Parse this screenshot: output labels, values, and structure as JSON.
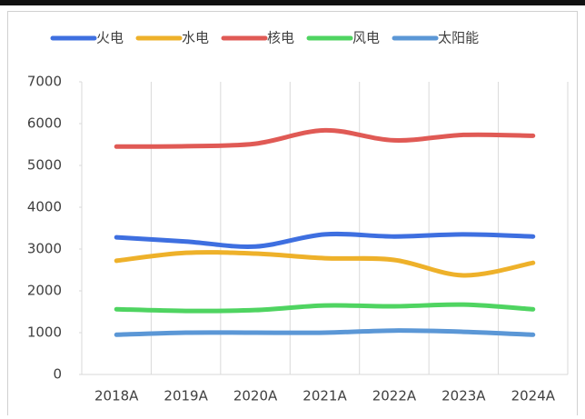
{
  "chart_data": {
    "type": "line",
    "categories": [
      "2018A",
      "2019A",
      "2020A",
      "2021A",
      "2022A",
      "2023A",
      "2024A"
    ],
    "series": [
      {
        "name": "火电",
        "color": "#3e6fe0",
        "values": [
          3280,
          3180,
          3060,
          3350,
          3300,
          3350,
          3300
        ]
      },
      {
        "name": "水电",
        "color": "#eeb12a",
        "values": [
          2720,
          2910,
          2890,
          2780,
          2740,
          2370,
          2670
        ]
      },
      {
        "name": "核电",
        "color": "#e05a55",
        "values": [
          5450,
          5460,
          5520,
          5840,
          5600,
          5730,
          5710
        ]
      },
      {
        "name": "风电",
        "color": "#4fd461",
        "values": [
          1560,
          1520,
          1540,
          1650,
          1630,
          1670,
          1560
        ]
      },
      {
        "name": "太阳能",
        "color": "#5b97d6",
        "values": [
          950,
          1000,
          1000,
          1000,
          1050,
          1020,
          950
        ]
      }
    ],
    "ylim": [
      0,
      7000
    ],
    "yticks": [
      0,
      1000,
      2000,
      3000,
      4000,
      5000,
      6000,
      7000
    ],
    "legend": "top",
    "smooth": true
  }
}
